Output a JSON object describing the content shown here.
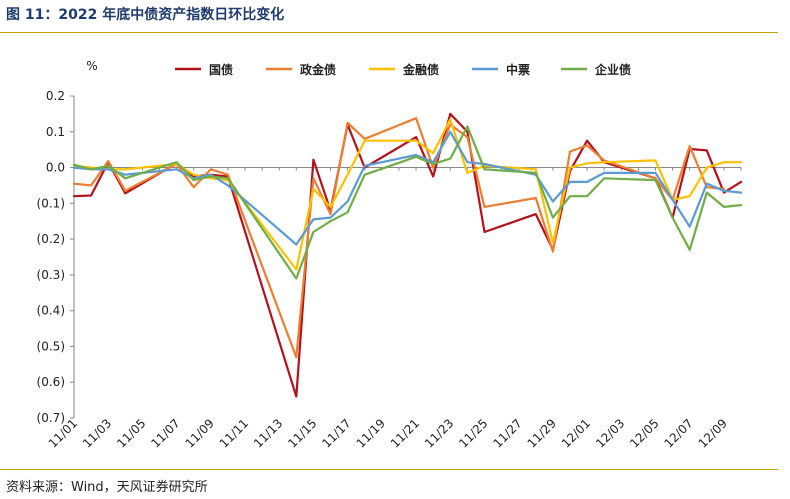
{
  "figure": {
    "title": "图 11：2022 年底中债资产指数日环比变化",
    "source": "资料来源：Wind，天风证券研究所"
  },
  "chart_data": {
    "type": "line",
    "unit_label": "%",
    "ylim": [
      -0.7,
      0.2
    ],
    "yticks": [
      0.2,
      0.1,
      0.0,
      -0.1,
      -0.2,
      -0.3,
      -0.4,
      -0.5,
      -0.6,
      -0.7
    ],
    "ytick_labels": [
      "0.2",
      "0.1",
      "0.0",
      "(0.1)",
      "(0.2)",
      "(0.3)",
      "(0.4)",
      "(0.5)",
      "(0.6)",
      "(0.7)"
    ],
    "x": [
      "11/01",
      "11/02",
      "11/03",
      "11/04",
      "11/05",
      "11/06",
      "11/07",
      "11/08",
      "11/09",
      "11/10",
      "11/11",
      "11/12",
      "11/13",
      "11/14",
      "11/15",
      "11/16",
      "11/17",
      "11/18",
      "11/19",
      "11/20",
      "11/21",
      "11/22",
      "11/23",
      "11/24",
      "11/25",
      "11/26",
      "11/27",
      "11/28",
      "11/29",
      "11/30",
      "12/01",
      "12/02",
      "12/03",
      "12/04",
      "12/05",
      "12/06",
      "12/07",
      "12/08",
      "12/09",
      "12/10"
    ],
    "xtick_labels": [
      "11/01",
      "11/03",
      "11/05",
      "11/07",
      "11/09",
      "11/11",
      "11/13",
      "11/15",
      "11/17",
      "11/19",
      "11/21",
      "11/23",
      "11/25",
      "11/27",
      "11/29",
      "12/01",
      "12/03",
      "12/05",
      "12/07",
      "12/09"
    ],
    "legend_position": "top",
    "grid": false,
    "series": [
      {
        "name": "国债",
        "color": "#b4121b",
        "points": [
          [
            "11/01",
            -0.08
          ],
          [
            "11/02",
            -0.078
          ],
          [
            "11/03",
            0.015
          ],
          [
            "11/04",
            -0.072
          ],
          [
            "11/07",
            0.012
          ],
          [
            "11/08",
            -0.025
          ],
          [
            "11/09",
            -0.02
          ],
          [
            "11/10",
            -0.025
          ],
          [
            "11/14",
            -0.64
          ],
          [
            "11/15",
            0.022
          ],
          [
            "11/16",
            -0.12
          ],
          [
            "11/17",
            0.12
          ],
          [
            "11/18",
            0.0
          ],
          [
            "11/21",
            0.085
          ],
          [
            "11/22",
            -0.025
          ],
          [
            "11/23",
            0.15
          ],
          [
            "11/24",
            0.1
          ],
          [
            "11/25",
            -0.18
          ],
          [
            "11/28",
            -0.13
          ],
          [
            "11/29",
            -0.23
          ],
          [
            "11/30",
            -0.01
          ],
          [
            "12/01",
            0.075
          ],
          [
            "12/02",
            0.015
          ],
          [
            "12/05",
            -0.03
          ],
          [
            "12/06",
            -0.14
          ],
          [
            "12/07",
            0.052
          ],
          [
            "12/08",
            0.048
          ],
          [
            "12/09",
            -0.07
          ],
          [
            "12/10",
            -0.04
          ]
        ]
      },
      {
        "name": "政金债",
        "color": "#ed7d31",
        "points": [
          [
            "11/01",
            -0.045
          ],
          [
            "11/02",
            -0.05
          ],
          [
            "11/03",
            0.018
          ],
          [
            "11/04",
            -0.065
          ],
          [
            "11/07",
            0.01
          ],
          [
            "11/08",
            -0.055
          ],
          [
            "11/09",
            -0.005
          ],
          [
            "11/10",
            -0.02
          ],
          [
            "11/14",
            -0.53
          ],
          [
            "11/15",
            -0.03
          ],
          [
            "11/16",
            -0.13
          ],
          [
            "11/17",
            0.125
          ],
          [
            "11/18",
            0.08
          ],
          [
            "11/21",
            0.138
          ],
          [
            "11/22",
            0.0
          ],
          [
            "11/23",
            0.12
          ],
          [
            "11/24",
            0.085
          ],
          [
            "11/25",
            -0.11
          ],
          [
            "11/28",
            -0.085
          ],
          [
            "11/29",
            -0.235
          ],
          [
            "11/30",
            0.045
          ],
          [
            "12/01",
            0.062
          ],
          [
            "12/02",
            0.02
          ],
          [
            "12/05",
            -0.03
          ],
          [
            "12/06",
            -0.09
          ],
          [
            "12/07",
            0.06
          ],
          [
            "12/08",
            -0.055
          ],
          [
            "12/09",
            -0.06
          ]
        ]
      },
      {
        "name": "金融债",
        "color": "#ffc000",
        "points": [
          [
            "11/01",
            0.005
          ],
          [
            "11/02",
            0.0
          ],
          [
            "11/03",
            -0.005
          ],
          [
            "11/04",
            -0.005
          ],
          [
            "11/07",
            0.01
          ],
          [
            "11/08",
            -0.02
          ],
          [
            "11/09",
            -0.03
          ],
          [
            "11/10",
            -0.035
          ],
          [
            "11/14",
            -0.285
          ],
          [
            "11/15",
            -0.06
          ],
          [
            "11/16",
            -0.11
          ],
          [
            "11/17",
            -0.02
          ],
          [
            "11/18",
            0.075
          ],
          [
            "11/21",
            0.075
          ],
          [
            "11/22",
            0.04
          ],
          [
            "11/23",
            0.135
          ],
          [
            "11/24",
            -0.015
          ],
          [
            "11/25",
            0.005
          ],
          [
            "11/28",
            -0.005
          ],
          [
            "11/29",
            -0.21
          ],
          [
            "11/30",
            0.0
          ],
          [
            "12/01",
            0.012
          ],
          [
            "12/02",
            0.015
          ],
          [
            "12/05",
            0.02
          ],
          [
            "12/06",
            -0.09
          ],
          [
            "12/07",
            -0.08
          ],
          [
            "12/08",
            0.0
          ],
          [
            "12/09",
            0.015
          ],
          [
            "12/10",
            0.015
          ]
        ]
      },
      {
        "name": "中票",
        "color": "#5b9bd5",
        "points": [
          [
            "11/01",
            0.0
          ],
          [
            "11/02",
            -0.005
          ],
          [
            "11/03",
            -0.005
          ],
          [
            "11/04",
            -0.02
          ],
          [
            "11/07",
            -0.005
          ],
          [
            "11/08",
            -0.03
          ],
          [
            "11/09",
            -0.02
          ],
          [
            "11/10",
            -0.05
          ],
          [
            "11/14",
            -0.215
          ],
          [
            "11/15",
            -0.145
          ],
          [
            "11/16",
            -0.14
          ],
          [
            "11/17",
            -0.095
          ],
          [
            "11/18",
            0.005
          ],
          [
            "11/21",
            0.035
          ],
          [
            "11/22",
            0.015
          ],
          [
            "11/23",
            0.1
          ],
          [
            "11/24",
            0.015
          ],
          [
            "11/25",
            0.01
          ],
          [
            "11/28",
            -0.02
          ],
          [
            "11/29",
            -0.095
          ],
          [
            "11/30",
            -0.04
          ],
          [
            "12/01",
            -0.04
          ],
          [
            "12/02",
            -0.015
          ],
          [
            "12/05",
            -0.015
          ],
          [
            "12/06",
            -0.09
          ],
          [
            "12/07",
            -0.165
          ],
          [
            "12/08",
            -0.045
          ],
          [
            "12/09",
            -0.065
          ],
          [
            "12/10",
            -0.07
          ]
        ]
      },
      {
        "name": "企业债",
        "color": "#70ad47",
        "points": [
          [
            "11/01",
            0.008
          ],
          [
            "11/02",
            -0.005
          ],
          [
            "11/03",
            0.005
          ],
          [
            "11/04",
            -0.03
          ],
          [
            "11/07",
            0.015
          ],
          [
            "11/08",
            -0.035
          ],
          [
            "11/09",
            -0.025
          ],
          [
            "11/10",
            -0.03
          ],
          [
            "11/14",
            -0.31
          ],
          [
            "11/15",
            -0.18
          ],
          [
            "11/16",
            -0.15
          ],
          [
            "11/17",
            -0.125
          ],
          [
            "11/18",
            -0.02
          ],
          [
            "11/21",
            0.03
          ],
          [
            "11/22",
            0.01
          ],
          [
            "11/23",
            0.025
          ],
          [
            "11/24",
            0.115
          ],
          [
            "11/25",
            -0.005
          ],
          [
            "11/28",
            -0.015
          ],
          [
            "11/29",
            -0.14
          ],
          [
            "11/30",
            -0.08
          ],
          [
            "12/01",
            -0.08
          ],
          [
            "12/02",
            -0.03
          ],
          [
            "12/05",
            -0.035
          ],
          [
            "12/06",
            -0.14
          ],
          [
            "12/07",
            -0.23
          ],
          [
            "12/08",
            -0.07
          ],
          [
            "12/09",
            -0.11
          ],
          [
            "12/10",
            -0.105
          ]
        ]
      }
    ]
  }
}
